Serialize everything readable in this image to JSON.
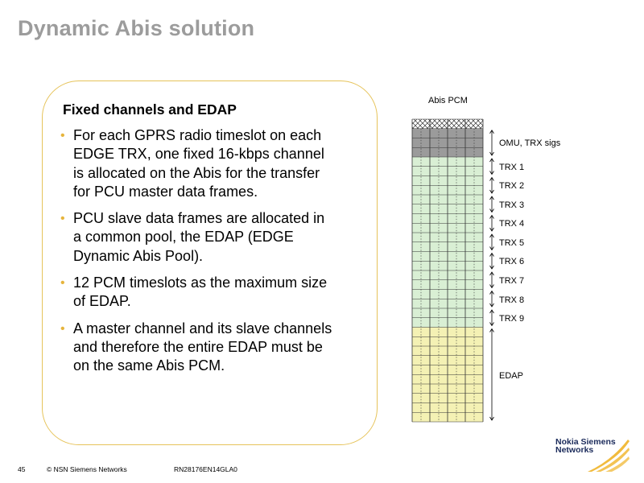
{
  "slide": {
    "title": "Dynamic Abis solution"
  },
  "content": {
    "heading": "Fixed channels and EDAP",
    "bullets": [
      "For each GPRS radio timeslot on each EDGE TRX, one fixed 16-kbps channel is allocated on the Abis for the transfer for PCU master data frames.",
      "PCU slave data frames are allocated in a common pool, the EDAP (EDGE Dynamic Abis Pool).",
      "12 PCM timeslots as the maximum size of EDAP.",
      "A master channel and its slave channels and therefore the entire EDAP must be on the same Abis PCM."
    ]
  },
  "diagram": {
    "header": "Abis PCM",
    "labels": {
      "omu": "OMU, TRX sigs",
      "trx1": "TRX 1",
      "trx2": "TRX 2",
      "trx3": "TRX 3",
      "trx4": "TRX 4",
      "trx5": "TRX 5",
      "trx6": "TRX 6",
      "trx7": "TRX 7",
      "trx8": "TRX 8",
      "trx9": "TRX 9",
      "edap": "EDAP"
    },
    "colors": {
      "sync_row": "#ffffff",
      "omu_rows": "#9b9b9b",
      "trx_rows": "#d9efd4",
      "edap_rows": "#f4f1b4",
      "grid": "#333333"
    }
  },
  "footer": {
    "page_number": "45",
    "copyright": "© NSN Siemens Networks",
    "doc_code": "RN28176EN14GLA0",
    "logo_line1": "Nokia Siemens",
    "logo_line2": "Networks"
  }
}
